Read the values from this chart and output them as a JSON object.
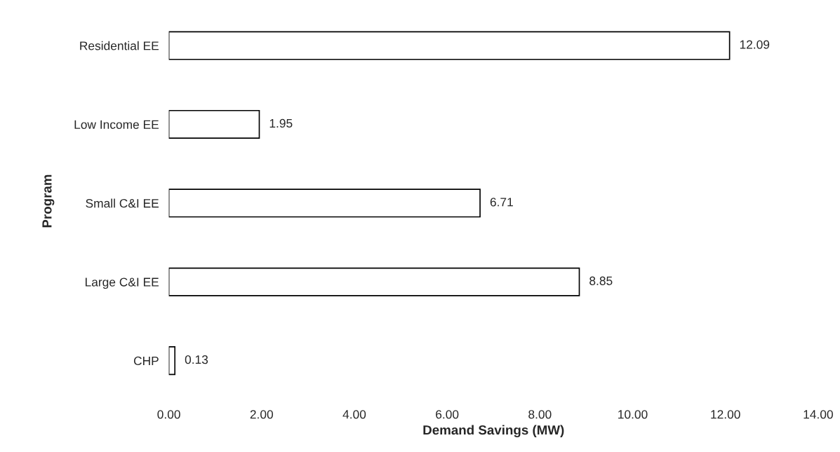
{
  "chart_data": {
    "type": "bar",
    "orientation": "horizontal",
    "xlabel": "Demand Savings (MW)",
    "ylabel": "Program",
    "categories": [
      "Residential EE",
      "Low Income EE",
      "Small C&I EE",
      "Large C&I EE",
      "CHP"
    ],
    "values": [
      12.09,
      1.95,
      6.71,
      8.85,
      0.13
    ],
    "color": "#ffffff",
    "data_labels": true,
    "xlim": [
      0,
      14
    ],
    "xticks": [
      {
        "value": 0,
        "label": "0.00"
      },
      {
        "value": 2,
        "label": "2.00"
      },
      {
        "value": 4,
        "label": "4.00"
      },
      {
        "value": 6,
        "label": "6.00"
      },
      {
        "value": 8,
        "label": "8.00"
      },
      {
        "value": 10,
        "label": "10.00"
      },
      {
        "value": 12,
        "label": "12.00"
      },
      {
        "value": 14,
        "label": "14.00"
      }
    ],
    "grid": false,
    "legend": false
  }
}
